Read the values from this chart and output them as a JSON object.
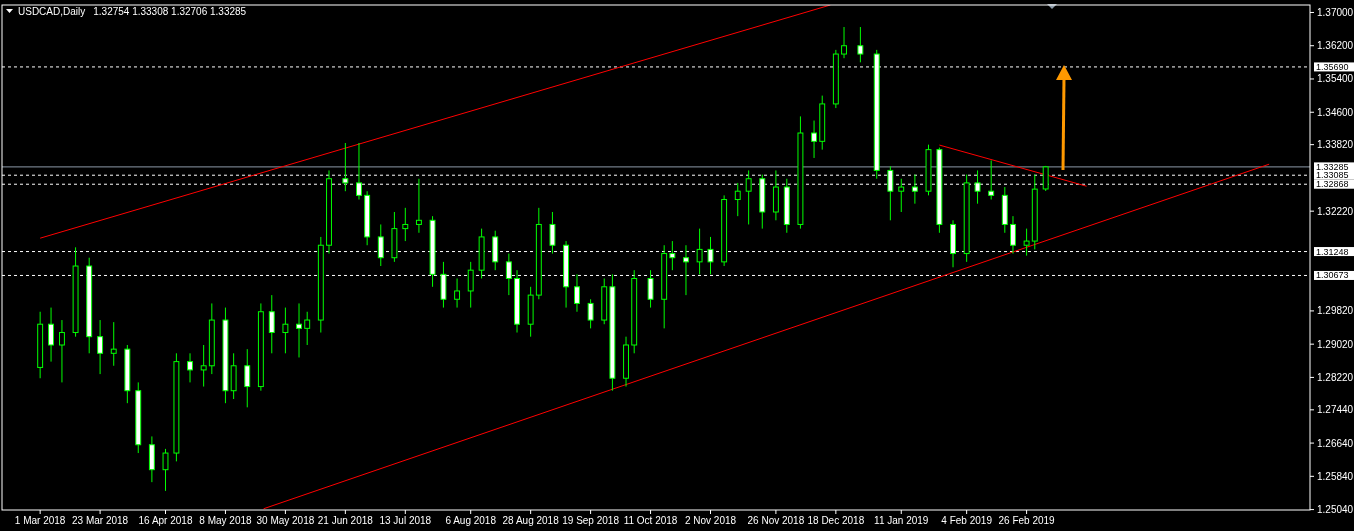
{
  "chart_data": {
    "type": "candlestick",
    "title": "USDCAD,Daily",
    "subtitle": "1.32754 1.33308 1.32706 1.33285",
    "color": "#00ff00",
    "grid": false,
    "x": [
      "2018-03-01",
      "2018-03-05",
      "2018-03-09",
      "2018-03-14",
      "2018-03-19",
      "2018-03-23",
      "2018-03-28",
      "2018-04-02",
      "2018-04-06",
      "2018-04-11",
      "2018-04-16",
      "2018-04-20",
      "2018-04-25",
      "2018-04-30",
      "2018-05-03",
      "2018-05-08",
      "2018-05-11",
      "2018-05-16",
      "2018-05-21",
      "2018-05-25",
      "2018-05-30",
      "2018-06-04",
      "2018-06-07",
      "2018-06-12",
      "2018-06-15",
      "2018-06-21",
      "2018-06-26",
      "2018-06-29",
      "2018-07-04",
      "2018-07-09",
      "2018-07-13",
      "2018-07-18",
      "2018-07-23",
      "2018-07-27",
      "2018-08-01",
      "2018-08-06",
      "2018-08-10",
      "2018-08-15",
      "2018-08-20",
      "2018-08-23",
      "2018-08-28",
      "2018-08-31",
      "2018-09-05",
      "2018-09-10",
      "2018-09-14",
      "2018-09-19",
      "2018-09-24",
      "2018-09-27",
      "2018-10-02",
      "2018-10-05",
      "2018-10-11",
      "2018-10-16",
      "2018-10-19",
      "2018-10-24",
      "2018-10-29",
      "2018-11-02",
      "2018-11-07",
      "2018-11-12",
      "2018-11-16",
      "2018-11-21",
      "2018-11-26",
      "2018-11-30",
      "2018-12-05",
      "2018-12-10",
      "2018-12-13",
      "2018-12-18",
      "2018-12-21",
      "2018-12-27",
      "2019-01-02",
      "2019-01-07",
      "2019-01-11",
      "2019-01-16",
      "2019-01-21",
      "2019-01-25",
      "2019-01-30",
      "2019-02-04",
      "2019-02-08",
      "2019-02-13",
      "2019-02-18",
      "2019-02-21",
      "2019-02-26",
      "2019-03-01",
      "2019-03-05"
    ],
    "ohlc": [
      [
        1.2846,
        1.298,
        1.282,
        1.295
      ],
      [
        1.295,
        1.299,
        1.286,
        1.29
      ],
      [
        1.29,
        1.296,
        1.281,
        1.293
      ],
      [
        1.293,
        1.3135,
        1.292,
        1.309
      ],
      [
        1.309,
        1.311,
        1.288,
        1.292
      ],
      [
        1.292,
        1.296,
        1.283,
        1.288
      ],
      [
        1.288,
        1.2955,
        1.285,
        1.289
      ],
      [
        1.289,
        1.29,
        1.276,
        1.279
      ],
      [
        1.279,
        1.281,
        1.264,
        1.266
      ],
      [
        1.266,
        1.268,
        1.257,
        1.26
      ],
      [
        1.26,
        1.265,
        1.2549,
        1.264
      ],
      [
        1.264,
        1.288,
        1.262,
        1.286
      ],
      [
        1.286,
        1.288,
        1.281,
        1.284
      ],
      [
        1.284,
        1.29,
        1.28,
        1.285
      ],
      [
        1.285,
        1.3,
        1.283,
        1.296
      ],
      [
        1.296,
        1.299,
        1.276,
        1.279
      ],
      [
        1.279,
        1.288,
        1.277,
        1.285
      ],
      [
        1.285,
        1.289,
        1.275,
        1.28
      ],
      [
        1.28,
        1.3,
        1.279,
        1.298
      ],
      [
        1.298,
        1.302,
        1.288,
        1.293
      ],
      [
        1.293,
        1.299,
        1.288,
        1.295
      ],
      [
        1.295,
        1.3,
        1.287,
        1.294
      ],
      [
        1.294,
        1.298,
        1.29,
        1.296
      ],
      [
        1.296,
        1.316,
        1.293,
        1.314
      ],
      [
        1.314,
        1.332,
        1.312,
        1.33
      ],
      [
        1.33,
        1.3386,
        1.327,
        1.329
      ],
      [
        1.329,
        1.3386,
        1.325,
        1.326
      ],
      [
        1.326,
        1.327,
        1.314,
        1.316
      ],
      [
        1.316,
        1.319,
        1.309,
        1.311
      ],
      [
        1.311,
        1.322,
        1.31,
        1.318
      ],
      [
        1.318,
        1.323,
        1.315,
        1.319
      ],
      [
        1.319,
        1.33,
        1.317,
        1.32
      ],
      [
        1.32,
        1.321,
        1.304,
        1.307
      ],
      [
        1.307,
        1.31,
        1.299,
        1.301
      ],
      [
        1.301,
        1.306,
        1.299,
        1.303
      ],
      [
        1.303,
        1.31,
        1.299,
        1.308
      ],
      [
        1.308,
        1.318,
        1.306,
        1.316
      ],
      [
        1.316,
        1.3175,
        1.308,
        1.31
      ],
      [
        1.31,
        1.312,
        1.302,
        1.306
      ],
      [
        1.306,
        1.308,
        1.293,
        1.295
      ],
      [
        1.295,
        1.304,
        1.292,
        1.302
      ],
      [
        1.302,
        1.323,
        1.301,
        1.319
      ],
      [
        1.319,
        1.322,
        1.312,
        1.314
      ],
      [
        1.314,
        1.315,
        1.299,
        1.304
      ],
      [
        1.304,
        1.307,
        1.298,
        1.3
      ],
      [
        1.3,
        1.301,
        1.294,
        1.296
      ],
      [
        1.296,
        1.306,
        1.295,
        1.304
      ],
      [
        1.304,
        1.307,
        1.279,
        1.282
      ],
      [
        1.282,
        1.292,
        1.28,
        1.29
      ],
      [
        1.29,
        1.308,
        1.288,
        1.306
      ],
      [
        1.306,
        1.308,
        1.299,
        1.301
      ],
      [
        1.301,
        1.314,
        1.294,
        1.312
      ],
      [
        1.312,
        1.315,
        1.308,
        1.311
      ],
      [
        1.311,
        1.314,
        1.302,
        1.31
      ],
      [
        1.31,
        1.318,
        1.307,
        1.313
      ],
      [
        1.313,
        1.316,
        1.307,
        1.31
      ],
      [
        1.31,
        1.326,
        1.309,
        1.325
      ],
      [
        1.325,
        1.329,
        1.321,
        1.327
      ],
      [
        1.327,
        1.332,
        1.319,
        1.33
      ],
      [
        1.33,
        1.331,
        1.318,
        1.322
      ],
      [
        1.322,
        1.332,
        1.32,
        1.328
      ],
      [
        1.328,
        1.33,
        1.317,
        1.319
      ],
      [
        1.319,
        1.345,
        1.318,
        1.341
      ],
      [
        1.341,
        1.344,
        1.335,
        1.339
      ],
      [
        1.339,
        1.35,
        1.337,
        1.348
      ],
      [
        1.348,
        1.361,
        1.347,
        1.36
      ],
      [
        1.36,
        1.3665,
        1.359,
        1.362
      ],
      [
        1.362,
        1.3665,
        1.358,
        1.36
      ],
      [
        1.36,
        1.361,
        1.33,
        1.332
      ],
      [
        1.332,
        1.333,
        1.32,
        1.327
      ],
      [
        1.327,
        1.33,
        1.322,
        1.328
      ],
      [
        1.328,
        1.331,
        1.324,
        1.327
      ],
      [
        1.327,
        1.3382,
        1.326,
        1.337
      ],
      [
        1.337,
        1.3375,
        1.317,
        1.319
      ],
      [
        1.319,
        1.32,
        1.3087,
        1.312
      ],
      [
        1.312,
        1.331,
        1.31,
        1.329
      ],
      [
        1.329,
        1.332,
        1.324,
        1.327
      ],
      [
        1.327,
        1.3344,
        1.325,
        1.326
      ],
      [
        1.326,
        1.328,
        1.317,
        1.319
      ],
      [
        1.319,
        1.321,
        1.312,
        1.314
      ],
      [
        1.314,
        1.318,
        1.3115,
        1.315
      ],
      [
        1.315,
        1.331,
        1.313,
        1.3275
      ],
      [
        1.32754,
        1.33308,
        1.32706,
        1.33285
      ]
    ],
    "series": [
      {
        "type": "line",
        "color": "#ff0000",
        "x": [
          "2018-03-01",
          "2018-12-16"
        ],
        "values": [
          1.3157,
          1.3718
        ]
      },
      {
        "type": "line",
        "color": "#ff0000",
        "x": [
          "2018-05-22",
          "2019-05-26"
        ],
        "values": [
          1.2506,
          1.3335
        ]
      },
      {
        "type": "line",
        "color": "#ff0000",
        "x": [
          "2019-01-25",
          "2019-03-20"
        ],
        "values": [
          1.3381,
          1.3282
        ]
      }
    ],
    "xlim": [
      "2018-02-15",
      "2019-06-10"
    ],
    "ylim": [
      1.2503,
      1.3718
    ],
    "xticks": [
      {
        "value": "2018-03-01",
        "label": "1 Mar 2018"
      },
      {
        "value": "2018-03-23",
        "label": "23 Mar 2018"
      },
      {
        "value": "2018-04-16",
        "label": "16 Apr 2018"
      },
      {
        "value": "2018-05-08",
        "label": "8 May 2018"
      },
      {
        "value": "2018-05-30",
        "label": "30 May 2018"
      },
      {
        "value": "2018-06-21",
        "label": "21 Jun 2018"
      },
      {
        "value": "2018-07-13",
        "label": "13 Jul 2018"
      },
      {
        "value": "2018-08-06",
        "label": "6 Aug 2018"
      },
      {
        "value": "2018-08-28",
        "label": "28 Aug 2018"
      },
      {
        "value": "2018-09-19",
        "label": "19 Sep 2018"
      },
      {
        "value": "2018-10-11",
        "label": "11 Oct 2018"
      },
      {
        "value": "2018-11-02",
        "label": "2 Nov 2018"
      },
      {
        "value": "2018-11-26",
        "label": "26 Nov 2018"
      },
      {
        "value": "2018-12-18",
        "label": "18 Dec 2018"
      },
      {
        "value": "2019-01-11",
        "label": "11 Jan 2019"
      },
      {
        "value": "2019-02-04",
        "label": "4 Feb 2019"
      },
      {
        "value": "2019-02-26",
        "label": "26 Feb 2019"
      }
    ],
    "yticks": [
      {
        "value": 1.37,
        "label": "1.37000"
      },
      {
        "value": 1.362,
        "label": "1.36200"
      },
      {
        "value": 1.354,
        "label": "1.35400"
      },
      {
        "value": 1.346,
        "label": "1.34600"
      },
      {
        "value": 1.3382,
        "label": "1.33820"
      },
      {
        "value": 1.3222,
        "label": "1.32220"
      },
      {
        "value": 1.2982,
        "label": "1.29820"
      },
      {
        "value": 1.2902,
        "label": "1.29020"
      },
      {
        "value": 1.2822,
        "label": "1.28220"
      },
      {
        "value": 1.2744,
        "label": "1.27440"
      },
      {
        "value": 1.2664,
        "label": "1.26640"
      },
      {
        "value": 1.2584,
        "label": "1.25840"
      },
      {
        "value": 1.2504,
        "label": "1.25040"
      }
    ],
    "ref_lines": [
      {
        "axis": "y",
        "value": 1.3569,
        "label": "1.35690",
        "color": "#ffffff",
        "line_style": "dashed"
      },
      {
        "axis": "y",
        "value": 1.33285,
        "label": "1.33285",
        "color": "#8c9aa8",
        "line_style": "solid"
      },
      {
        "axis": "y",
        "value": 1.33085,
        "label": "1.33085",
        "color": "#ffffff",
        "line_style": "dashed"
      },
      {
        "axis": "y",
        "value": 1.32868,
        "label": "1.32868",
        "color": "#ffffff",
        "line_style": "dashed"
      },
      {
        "axis": "y",
        "value": 1.31248,
        "label": "1.31248",
        "color": "#ffffff",
        "line_style": "dashed"
      },
      {
        "axis": "y",
        "value": 1.30673,
        "label": "1.30673",
        "color": "#ffffff",
        "line_style": "dashed"
      }
    ]
  }
}
